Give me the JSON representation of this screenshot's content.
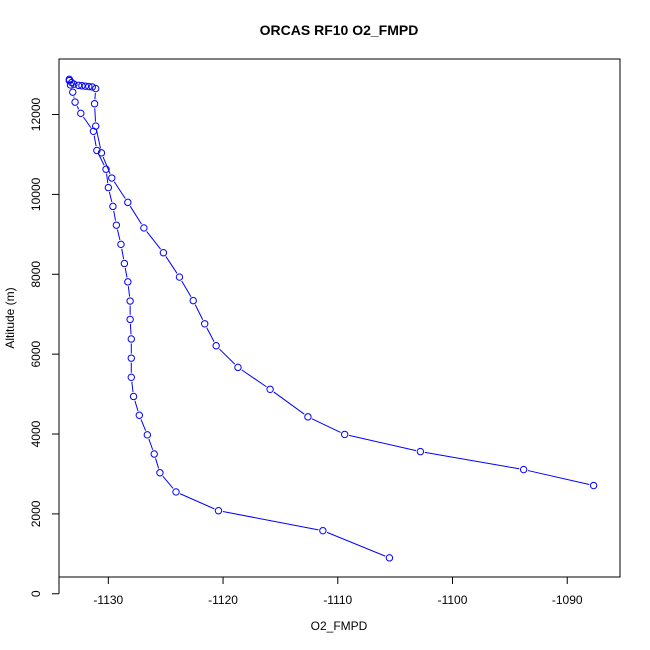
{
  "chart_data": {
    "type": "line",
    "title": "ORCAS RF10 O2_FMPD",
    "xlabel": "O2_FMPD",
    "ylabel": "Altitude (m)",
    "xlim": [
      -1134.3,
      -1085.4
    ],
    "ylim": [
      420,
      13390
    ],
    "x_ticks": [
      -1130,
      -1120,
      -1110,
      -1100,
      -1090
    ],
    "y_ticks": [
      0,
      2000,
      4000,
      6000,
      8000,
      10000,
      12000
    ],
    "color": "#0000ff",
    "marker": "open-circle",
    "grid": false,
    "series": [
      {
        "points": [
          [
            -1105.5,
            900
          ],
          [
            -1111.3,
            1580
          ],
          [
            -1120.4,
            2080
          ],
          [
            -1124.1,
            2550
          ],
          [
            -1125.5,
            3030
          ],
          [
            -1126.0,
            3500
          ],
          [
            -1126.6,
            3980
          ],
          [
            -1127.3,
            4470
          ],
          [
            -1127.8,
            4940
          ],
          [
            -1128.0,
            5420
          ],
          [
            -1128.0,
            5900
          ],
          [
            -1128.0,
            6380
          ],
          [
            -1128.1,
            6870
          ],
          [
            -1128.1,
            7330
          ],
          [
            -1128.3,
            7810
          ],
          [
            -1128.6,
            8270
          ],
          [
            -1128.9,
            8750
          ],
          [
            -1129.3,
            9230
          ],
          [
            -1129.6,
            9700
          ],
          [
            -1130.0,
            10170
          ],
          [
            -1130.2,
            10630
          ],
          [
            -1131.0,
            11100
          ],
          [
            -1131.3,
            11580
          ],
          [
            -1132.4,
            12030
          ],
          [
            -1132.9,
            12310
          ],
          [
            -1133.1,
            12560
          ],
          [
            -1133.3,
            12740
          ],
          [
            -1133.4,
            12850
          ],
          [
            -1133.4,
            12880
          ],
          [
            -1133.2,
            12800
          ],
          [
            -1133.0,
            12760
          ],
          [
            -1132.6,
            12730
          ],
          [
            -1132.3,
            12720
          ],
          [
            -1132.0,
            12710
          ],
          [
            -1131.7,
            12700
          ],
          [
            -1131.4,
            12690
          ],
          [
            -1131.1,
            12650
          ],
          [
            -1131.2,
            12270
          ],
          [
            -1131.1,
            11710
          ],
          [
            -1130.6,
            11040
          ],
          [
            -1129.7,
            10410
          ],
          [
            -1128.3,
            9800
          ],
          [
            -1126.9,
            9160
          ],
          [
            -1125.2,
            8540
          ],
          [
            -1123.8,
            7930
          ],
          [
            -1122.6,
            7340
          ],
          [
            -1121.6,
            6760
          ],
          [
            -1120.6,
            6210
          ],
          [
            -1118.7,
            5670
          ],
          [
            -1115.9,
            5120
          ],
          [
            -1112.6,
            4430
          ],
          [
            -1109.4,
            3990
          ],
          [
            -1102.8,
            3560
          ],
          [
            -1093.8,
            3110
          ],
          [
            -1087.7,
            2710
          ]
        ]
      }
    ]
  }
}
